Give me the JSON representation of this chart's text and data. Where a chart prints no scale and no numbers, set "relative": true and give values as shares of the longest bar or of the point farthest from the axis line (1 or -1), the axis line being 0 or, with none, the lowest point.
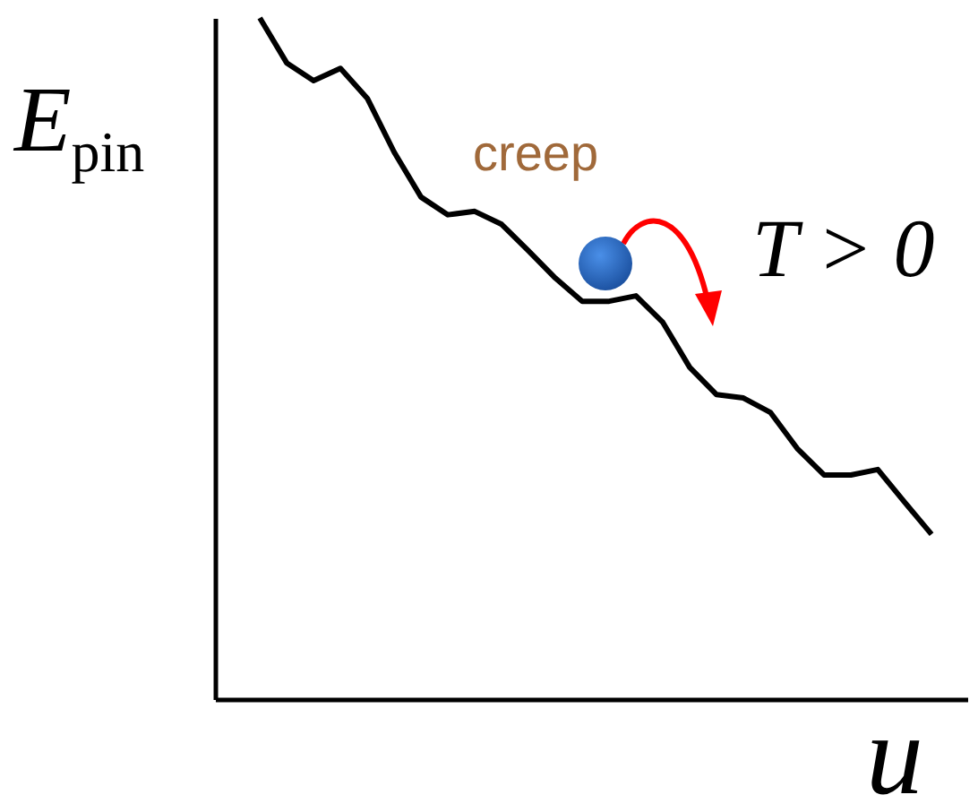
{
  "chart_data": {
    "type": "line",
    "relative": true,
    "xlabel": "u",
    "ylabel": "E$_{pin}$",
    "annotations": [
      "creep",
      "T > 0"
    ],
    "categories": [
      null,
      null,
      null,
      null,
      null,
      null,
      null,
      null,
      null,
      null,
      null,
      null,
      null,
      null,
      null,
      null,
      null,
      null,
      null,
      null,
      null,
      null,
      null,
      null,
      null,
      null
    ],
    "series": [
      {
        "color": "#000000",
        "values": [
          1,
          0.934,
          0.908,
          0.926,
          0.882,
          0.803,
          0.737,
          0.711,
          0.716,
          0.697,
          0.658,
          0.618,
          0.584,
          0.584,
          0.592,
          0.553,
          0.487,
          0.447,
          0.442,
          0.421,
          0.368,
          0.329,
          0.329,
          0.337,
          0.289,
          0.242
        ]
      }
    ]
  }
}
